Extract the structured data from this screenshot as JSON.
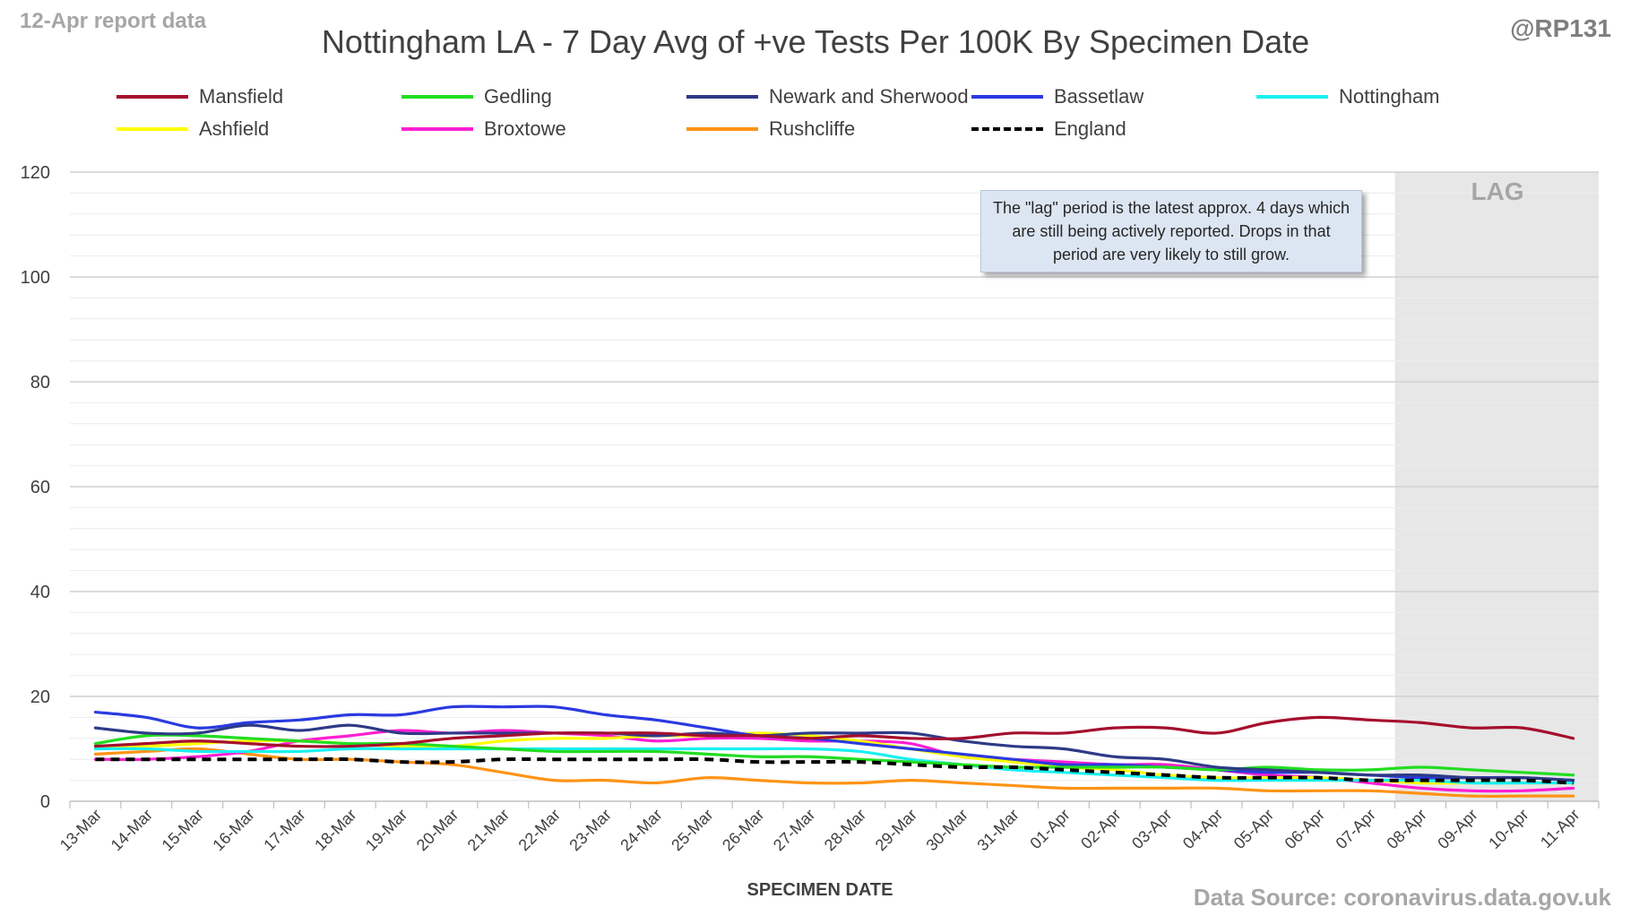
{
  "header": {
    "report_label": "12-Apr report data",
    "handle": "@RP131",
    "title": "Nottingham LA - 7 Day Avg of +ve Tests Per 100K By Specimen Date"
  },
  "annotation": {
    "note": "The \"lag\" period is the latest approx. 4 days which are still being actively reported. Drops in that period are very likely to still grow.",
    "lag_label": "LAG"
  },
  "footer": {
    "source": "Data Source: coronavirus.data.gov.uk"
  },
  "chart_data": {
    "type": "line",
    "title": "Nottingham LA - 7 Day Avg of +ve Tests Per 100K By Specimen Date",
    "xlabel": "SPECIMEN DATE",
    "ylabel": "",
    "ylim": [
      0,
      120
    ],
    "yticks": [
      0,
      20,
      40,
      60,
      80,
      100,
      120
    ],
    "grid": true,
    "legend_position": "top",
    "lag_region": {
      "start": "08-Apr",
      "end": "11-Apr",
      "color": "#e7e7e7"
    },
    "categories": [
      "13-Mar",
      "14-Mar",
      "15-Mar",
      "16-Mar",
      "17-Mar",
      "18-Mar",
      "19-Mar",
      "20-Mar",
      "21-Mar",
      "22-Mar",
      "23-Mar",
      "24-Mar",
      "25-Mar",
      "26-Mar",
      "27-Mar",
      "28-Mar",
      "29-Mar",
      "30-Mar",
      "31-Mar",
      "01-Apr",
      "02-Apr",
      "03-Apr",
      "04-Apr",
      "05-Apr",
      "06-Apr",
      "07-Apr",
      "08-Apr",
      "09-Apr",
      "10-Apr",
      "11-Apr"
    ],
    "series": [
      {
        "name": "Mansfield",
        "color": "#a50f2d",
        "dash": false,
        "values": [
          10.5,
          11,
          11.5,
          11,
          10.5,
          10.5,
          11,
          12,
          12.5,
          13,
          13,
          13,
          12.5,
          12.5,
          12,
          12.5,
          12,
          12,
          13,
          13,
          14,
          14,
          13,
          15,
          16,
          15.5,
          15,
          14,
          14,
          12
        ]
      },
      {
        "name": "Gedling",
        "color": "#22dd22",
        "dash": false,
        "values": [
          11,
          12.5,
          12.5,
          12,
          11.5,
          11,
          11,
          10.5,
          10,
          9.5,
          9.5,
          9.5,
          9,
          8.5,
          8.5,
          8,
          7.5,
          7,
          6.5,
          6.5,
          6.5,
          6.5,
          6,
          6.5,
          6,
          6,
          6.5,
          6,
          5.5,
          5
        ]
      },
      {
        "name": "Newark and Sherwood",
        "color": "#2e3a87",
        "dash": false,
        "values": [
          14,
          13,
          13,
          14.5,
          13.5,
          14.5,
          13,
          13,
          13,
          13,
          13,
          12.5,
          13,
          12.5,
          13,
          13,
          13,
          11.5,
          10.5,
          10,
          8.5,
          8,
          6.5,
          6,
          5.5,
          5,
          5,
          4.5,
          4.5,
          4
        ]
      },
      {
        "name": "Bassetlaw",
        "color": "#2a3ae0",
        "dash": false,
        "values": [
          17,
          16,
          14,
          15,
          15.5,
          16.5,
          16.5,
          18,
          18,
          18,
          16.5,
          15.5,
          14,
          12.5,
          12,
          11,
          10,
          9,
          8,
          7,
          7,
          6.5,
          6,
          5.5,
          5.5,
          5,
          4.5,
          4.5,
          4.5,
          4
        ]
      },
      {
        "name": "Nottingham",
        "color": "#19f0f0",
        "dash": false,
        "values": [
          10,
          10,
          9.5,
          9.5,
          9.5,
          10,
          10,
          10,
          10,
          10,
          10,
          10,
          10,
          10,
          10,
          9.5,
          8,
          7,
          6,
          5.5,
          5,
          4.5,
          4,
          4,
          4,
          4,
          4,
          3.5,
          3.5,
          3.5
        ]
      },
      {
        "name": "Ashfield",
        "color": "#ffff00",
        "dash": false,
        "values": [
          10.5,
          10.5,
          11,
          11.5,
          11.5,
          11,
          10.5,
          10.5,
          11.5,
          12,
          12,
          12.5,
          12.5,
          13,
          12.5,
          11.5,
          10,
          8.5,
          7.5,
          6.5,
          6,
          5,
          4.5,
          4.5,
          4.5,
          4,
          3.5,
          3.5,
          3.5,
          3.5
        ]
      },
      {
        "name": "Broxtowe",
        "color": "#ff1ed2",
        "dash": false,
        "values": [
          8,
          8,
          8.5,
          9.5,
          11.5,
          12.5,
          13.5,
          13,
          13.5,
          13,
          12.5,
          11.5,
          12,
          12,
          11.5,
          11.5,
          11,
          8.5,
          8,
          7.5,
          7,
          7,
          6,
          5,
          4.5,
          3.5,
          2.5,
          2,
          2,
          2.5
        ]
      },
      {
        "name": "Rushcliffe",
        "color": "#ff9314",
        "dash": false,
        "values": [
          9,
          9.5,
          10,
          9,
          8,
          8,
          7.5,
          7,
          5.5,
          4,
          4,
          3.5,
          4.5,
          4,
          3.5,
          3.5,
          4,
          3.5,
          3,
          2.5,
          2.5,
          2.5,
          2.5,
          2,
          2,
          2,
          1.5,
          1,
          1,
          1
        ]
      },
      {
        "name": "England",
        "color": "#000000",
        "dash": true,
        "values": [
          8,
          8,
          8,
          8,
          8,
          8,
          7.5,
          7.5,
          8,
          8,
          8,
          8,
          8,
          7.5,
          7.5,
          7.5,
          7,
          6.5,
          6.5,
          6,
          5.5,
          5,
          4.5,
          4.5,
          4.5,
          4,
          4,
          4,
          4,
          3.5
        ]
      }
    ]
  }
}
